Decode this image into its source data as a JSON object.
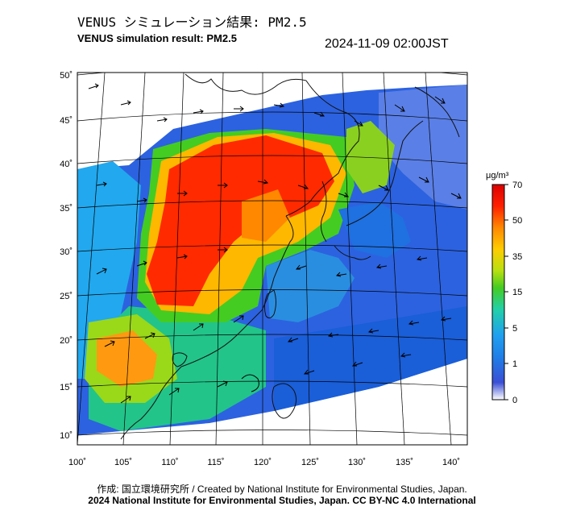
{
  "title_jp": "VENUS シミュレーション結果: PM2.5",
  "title_en": "VENUS simulation result: PM2.5",
  "timestamp": "2024-11-09 02:00JST",
  "map": {
    "lat_labels": [
      "50˚",
      "45˚",
      "40˚",
      "35˚",
      "30˚",
      "25˚",
      "20˚",
      "15˚",
      "10˚"
    ],
    "lon_labels": [
      "100˚",
      "105˚",
      "110˚",
      "115˚",
      "120˚",
      "125˚",
      "130˚",
      "135˚",
      "140˚"
    ],
    "layers": [
      "PM2.5 concentration field",
      "wind vectors",
      "coastlines",
      "lat/lon graticule"
    ]
  },
  "colorbar": {
    "unit": "μg/m³",
    "tick_labels": [
      "70",
      "50",
      "35",
      "15",
      "5",
      "1",
      "0"
    ],
    "colors": [
      "#ffffff",
      "#3a4fd6",
      "#1fa0f0",
      "#22d0a8",
      "#44cc22",
      "#b8e010",
      "#ffcc00",
      "#ff8800",
      "#ff2000",
      "#dd0000"
    ]
  },
  "footer": {
    "credit": "作成: 国立環境研究所 / Created by National Institute for Environmental Studies, Japan.",
    "copyright": "2024 National Institute for Environmental Studies, Japan. CC BY-NC 4.0 International"
  }
}
